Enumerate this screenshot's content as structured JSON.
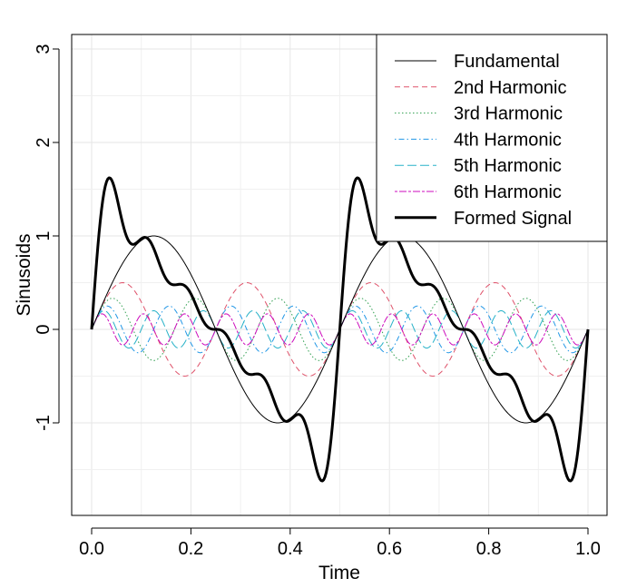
{
  "chart_data": {
    "type": "line",
    "title": "",
    "xlabel": "Time",
    "ylabel": "Sinusoids",
    "xlim": [
      -0.04,
      1.04
    ],
    "ylim": [
      -2.0,
      3.2
    ],
    "x_ticks": [
      0.0,
      0.2,
      0.4,
      0.6,
      0.8,
      1.0
    ],
    "x_tick_labels": [
      "0.0",
      "0.2",
      "0.4",
      "0.6",
      "0.8",
      "1.0"
    ],
    "x_minor_ticks": [
      0.1,
      0.3,
      0.5,
      0.7,
      0.9
    ],
    "y_ticks": [
      -1,
      0,
      1,
      2,
      3
    ],
    "y_tick_labels": [
      "-1",
      "0",
      "1",
      "2",
      "3"
    ],
    "grid": true,
    "legend_position": "top-right",
    "x_sampling": {
      "start": 0,
      "end": 1,
      "step": 0.0025
    },
    "series": [
      {
        "name": "Fundamental",
        "color": "#000000",
        "dash": "solid",
        "width": 1,
        "formula": {
          "amplitude": 1.0,
          "cycles": 2
        }
      },
      {
        "name": "2nd Harmonic",
        "color": "#DF536B",
        "dash": "dashed",
        "width": 1,
        "formula": {
          "amplitude": 0.5,
          "cycles": 4
        }
      },
      {
        "name": "3rd Harmonic",
        "color": "#2E9E4E",
        "dash": "dotted",
        "width": 1,
        "formula": {
          "amplitude": 0.3333,
          "cycles": 6
        }
      },
      {
        "name": "4th Harmonic",
        "color": "#2297E6",
        "dash": "dotdash",
        "width": 1,
        "formula": {
          "amplitude": 0.25,
          "cycles": 8
        }
      },
      {
        "name": "5th Harmonic",
        "color": "#28B2C8",
        "dash": "longdash",
        "width": 1,
        "formula": {
          "amplitude": 0.2,
          "cycles": 10
        }
      },
      {
        "name": "6th Harmonic",
        "color": "#CD0BBC",
        "dash": "twodash",
        "width": 1,
        "formula": {
          "amplitude": 0.1667,
          "cycles": 12
        }
      },
      {
        "name": "Formed Signal",
        "color": "#000000",
        "dash": "solid",
        "width": 3,
        "formula": "sum of all harmonics"
      }
    ]
  }
}
